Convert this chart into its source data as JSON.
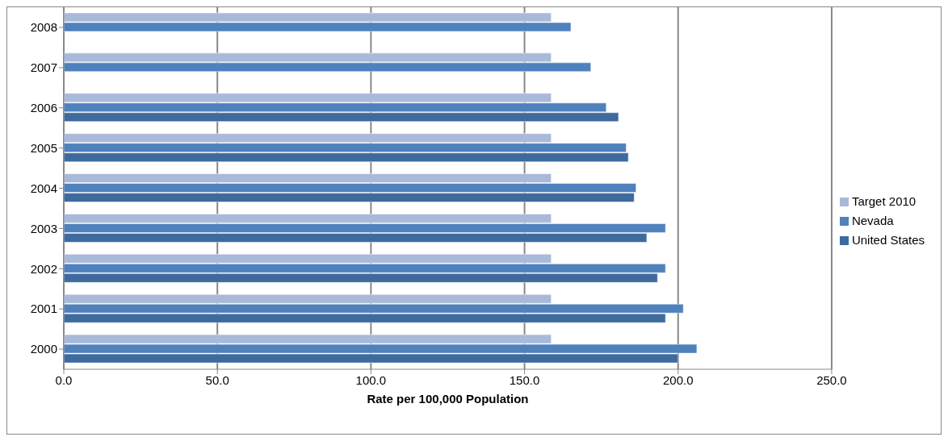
{
  "chart_data": {
    "type": "bar",
    "orientation": "horizontal",
    "categories": [
      "2008",
      "2007",
      "2006",
      "2005",
      "2004",
      "2003",
      "2002",
      "2001",
      "2000"
    ],
    "series": [
      {
        "name": "Target 2010",
        "color": "#a9b9d9",
        "values": [
          158.7,
          158.7,
          158.7,
          158.7,
          158.7,
          158.7,
          158.7,
          158.7,
          158.7
        ]
      },
      {
        "name": "Nevada",
        "color": "#4f81bd",
        "values": [
          165.1,
          171.6,
          176.6,
          183.1,
          186.3,
          195.9,
          195.9,
          201.7,
          206.1
        ]
      },
      {
        "name": "United States",
        "color": "#3f6a9e",
        "values": [
          null,
          null,
          180.6,
          183.8,
          185.7,
          189.8,
          193.3,
          195.9,
          200.0
        ]
      }
    ],
    "xlim": [
      0,
      250
    ],
    "xticks": [
      {
        "value": 0,
        "label": "0.0"
      },
      {
        "value": 50,
        "label": "50.0"
      },
      {
        "value": 100,
        "label": "100.0"
      },
      {
        "value": 150,
        "label": "150.0"
      },
      {
        "value": 200,
        "label": "200.0"
      },
      {
        "value": 250,
        "label": "250.0"
      }
    ],
    "xlabel": "Rate per 100,000 Population",
    "grid": "x",
    "legend": "right"
  }
}
